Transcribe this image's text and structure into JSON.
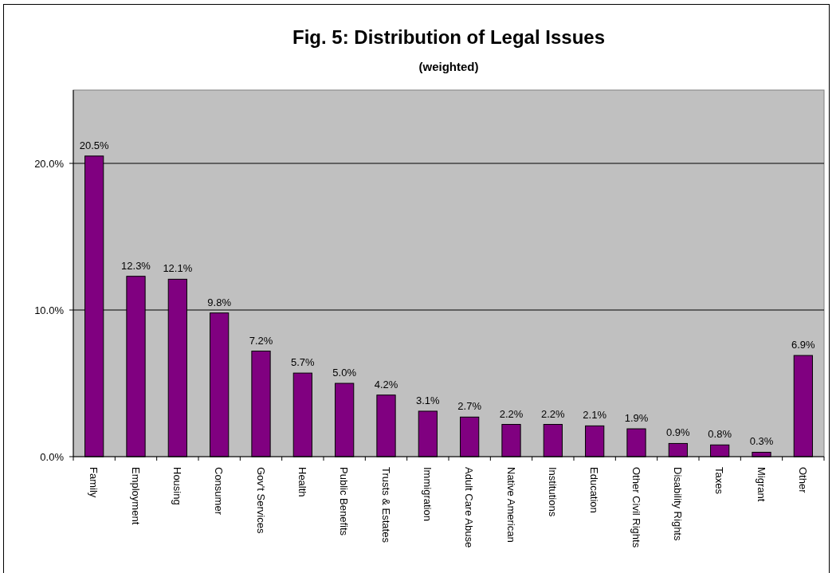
{
  "chart_data": {
    "type": "bar",
    "title": "Fig. 5: Distribution of Legal Issues",
    "subtitle": "(weighted)",
    "categories": [
      "Family",
      "Employment",
      "Housing",
      "Consumer",
      "Gov't Services",
      "Health",
      "Public Benefits",
      "Trusts & Estates",
      "Immigration",
      "Adult Care Abuse",
      "Native American",
      "Institutions",
      "Education",
      "Other Civil Rights",
      "Disability Rights",
      "Taxes",
      "Migrant",
      "Other"
    ],
    "values": [
      20.5,
      12.3,
      12.1,
      9.8,
      7.2,
      5.7,
      5.0,
      4.2,
      3.1,
      2.7,
      2.2,
      2.2,
      2.1,
      1.9,
      0.9,
      0.8,
      0.3,
      6.9
    ],
    "value_labels": [
      "20.5%",
      "12.3%",
      "12.1%",
      "9.8%",
      "7.2%",
      "5.7%",
      "5.0%",
      "4.2%",
      "3.1%",
      "2.7%",
      "2.2%",
      "2.2%",
      "2.1%",
      "1.9%",
      "0.9%",
      "0.8%",
      "0.3%",
      "6.9%"
    ],
    "color": "#800080",
    "ylim": [
      0,
      25
    ],
    "yticks": [
      {
        "value": 0,
        "label": "0.0%"
      },
      {
        "value": 10,
        "label": "10.0%"
      },
      {
        "value": 20,
        "label": "20.0%"
      }
    ],
    "grid": "y"
  }
}
